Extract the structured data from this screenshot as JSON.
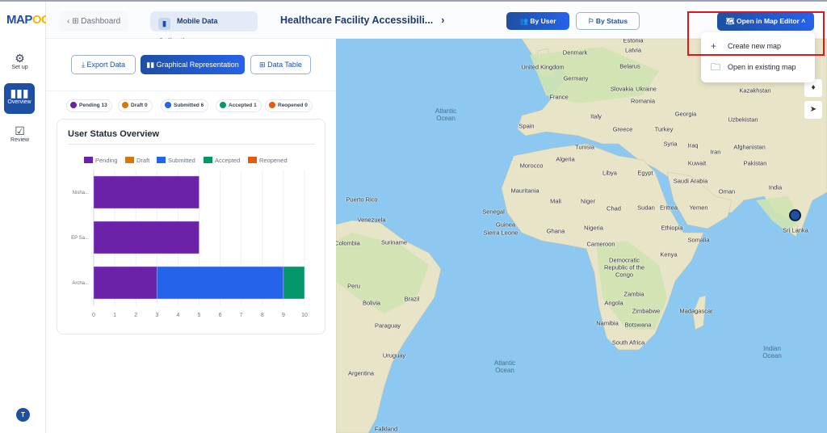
{
  "brand": {
    "logo_text_a": "MAP",
    "logo_text_b": "OG"
  },
  "sidebar": {
    "items": [
      {
        "label": "Set up",
        "icon": "gear-icon"
      },
      {
        "label": "Overview",
        "icon": "bar-chart-icon",
        "active": true
      },
      {
        "label": "Review",
        "icon": "checkbox-icon"
      }
    ],
    "avatar": "T"
  },
  "header": {
    "back": "Dashboard",
    "module": "Mobile Data Collection",
    "project": "Healthcare Facility Accessibili...",
    "by_user": "By User",
    "by_status": "By Status",
    "open_editor": "Open in Map Editor"
  },
  "dropdown": {
    "items": [
      {
        "label": "Create new map",
        "icon": "plus-icon"
      },
      {
        "label": "Open in existing map",
        "icon": "folder-icon"
      }
    ]
  },
  "view_buttons": {
    "export": "Export Data",
    "graphical": "Graphical Representation",
    "table": "Data Table"
  },
  "status_pills": [
    {
      "label": "Pending",
      "count": "13",
      "color": "#6b21a8"
    },
    {
      "label": "Draft",
      "count": "0",
      "color": "#d97706"
    },
    {
      "label": "Submitted",
      "count": "6",
      "color": "#2563eb"
    },
    {
      "label": "Accepted",
      "count": "1",
      "color": "#059669"
    },
    {
      "label": "Reopened",
      "count": "0",
      "color": "#ea580c"
    }
  ],
  "chart_data": {
    "type": "bar",
    "orientation": "horizontal",
    "stacked": true,
    "title": "User Status Overview",
    "categories": [
      "Nisha...",
      "EP Sa...",
      "Archa..."
    ],
    "series": [
      {
        "name": "Pending",
        "color": "#6b21a8",
        "values": [
          5,
          5,
          3
        ]
      },
      {
        "name": "Draft",
        "color": "#d97706",
        "values": [
          0,
          0,
          0
        ]
      },
      {
        "name": "Submitted",
        "color": "#2563eb",
        "values": [
          0,
          0,
          6
        ]
      },
      {
        "name": "Accepted",
        "color": "#059669",
        "values": [
          0,
          0,
          1
        ]
      },
      {
        "name": "Reopened",
        "color": "#ea580c",
        "values": [
          0,
          0,
          0
        ]
      }
    ],
    "xlim": [
      0,
      10
    ],
    "xticks": [
      "0",
      "1",
      "2",
      "3",
      "4",
      "5",
      "6",
      "7",
      "8",
      "9",
      "10"
    ],
    "grid": true,
    "legend": "top"
  },
  "map": {
    "labels": [
      "Atlantic Ocean",
      "Atlantic Ocean",
      "Indian Ocean",
      "United Kingdom",
      "Denmark",
      "Estonia",
      "Latvia",
      "Belarus",
      "Germany",
      "Slovakia",
      "Ukraine",
      "France",
      "Romania",
      "Spain",
      "Italy",
      "Greece",
      "Turkey",
      "Kazakhstan",
      "Uzbekistan",
      "Georgia",
      "Syria",
      "Iraq",
      "Iran",
      "Afghanistan",
      "Pakistan",
      "India",
      "Kuwait",
      "Tunisia",
      "Morocco",
      "Algeria",
      "Libya",
      "Egypt",
      "Saudi Arabia",
      "Oman",
      "Yemen",
      "Mauritania",
      "Mali",
      "Niger",
      "Chad",
      "Sudan",
      "Eritrea",
      "Senegal",
      "Guinea",
      "Sierra Leone",
      "Ghana",
      "Nigeria",
      "Ethiopia",
      "Somalia",
      "Cameroon",
      "Kenya",
      "Democratic Republic of the Congo",
      "Angola",
      "Zambia",
      "Zimbabwe",
      "Namibia",
      "Botswana",
      "South Africa",
      "Madagascar",
      "Sri Lanka",
      "Puerto Rico",
      "Colombia",
      "Suriname",
      "Venezuela",
      "Peru",
      "Brazil",
      "Bolivia",
      "Paraguay",
      "Uruguay",
      "Argentina",
      "Falkland"
    ]
  }
}
